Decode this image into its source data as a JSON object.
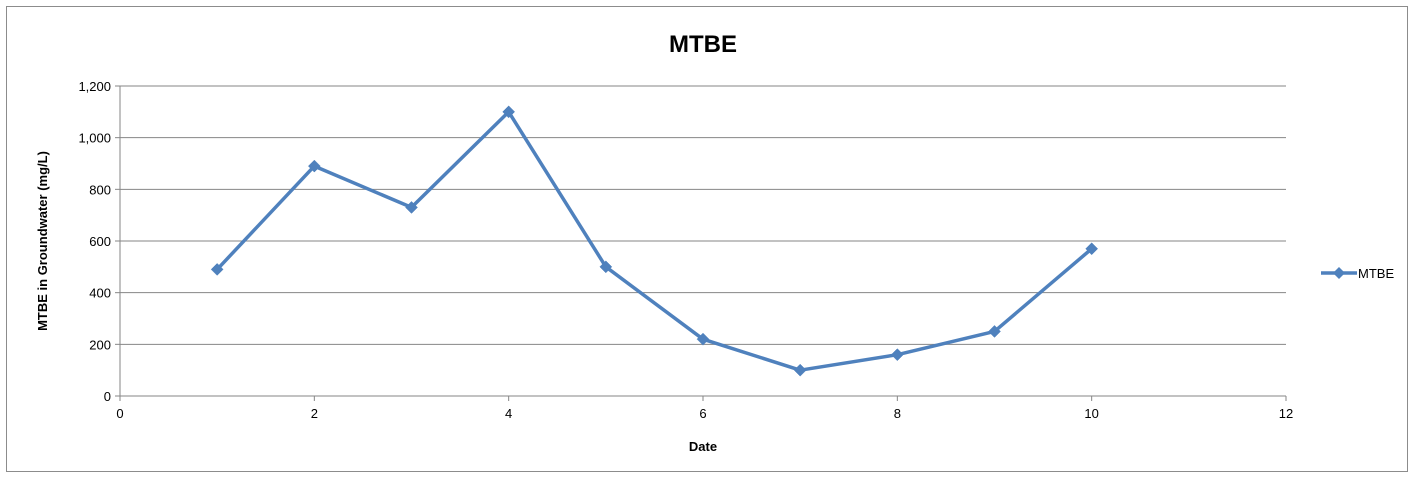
{
  "chart_data": {
    "type": "line",
    "title": "MTBE",
    "xlabel": "Date",
    "ylabel": "MTBE in Groundwater (mg/L)",
    "xlim": [
      0,
      12
    ],
    "ylim": [
      0,
      1200
    ],
    "x_ticks": [
      0,
      2,
      4,
      6,
      8,
      10,
      12
    ],
    "x_tick_labels": [
      "0",
      "2",
      "4",
      "6",
      "8",
      "10",
      "12"
    ],
    "y_ticks": [
      0,
      200,
      400,
      600,
      800,
      1000,
      1200
    ],
    "y_tick_labels": [
      "0",
      "200",
      "400",
      "600",
      "800",
      "1,000",
      "1,200"
    ],
    "grid": "horizontal major gridlines",
    "legend_position": "right",
    "marker": "diamond",
    "series": [
      {
        "name": "MTBE",
        "color": "#4F81BD",
        "x": [
          1,
          2,
          3,
          4,
          5,
          6,
          7,
          8,
          9,
          10
        ],
        "y": [
          490,
          890,
          730,
          1100,
          500,
          220,
          100,
          160,
          250,
          570
        ]
      }
    ]
  }
}
